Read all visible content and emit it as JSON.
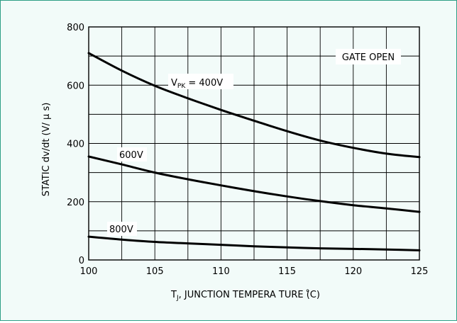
{
  "chart_data": {
    "type": "line",
    "title": "",
    "xlabel": "T_J, JUNCTION TEMPERA TURE (̊C)",
    "xlabel_main": "T",
    "xlabel_sub": "J",
    "xlabel_rest": ", JUNCTION TEMPERA TURE (̊C)",
    "ylabel": "STATIC dv/dt (V/ μ s)",
    "xlim": [
      100,
      125
    ],
    "ylim": [
      0,
      800
    ],
    "xticks": [
      "100",
      "105",
      "110",
      "115",
      "120",
      "125"
    ],
    "yticks": [
      "0",
      "200",
      "400",
      "600",
      "800"
    ],
    "grid": true,
    "annotation": "GATE OPEN",
    "series": [
      {
        "name": "V_PK = 400V",
        "label_main": "V",
        "label_sub": "PK",
        "label_rest": " = 400V",
        "x": [
          100,
          102.5,
          105,
          107.5,
          110,
          112.5,
          115,
          117.5,
          120,
          122.5,
          125
        ],
        "y": [
          710,
          650,
          598,
          555,
          515,
          478,
          442,
          410,
          385,
          365,
          353
        ]
      },
      {
        "name": "600V",
        "label_main": "600V",
        "x": [
          100,
          102.5,
          105,
          107.5,
          110,
          112.5,
          115,
          117.5,
          120,
          122.5,
          125
        ],
        "y": [
          355,
          328,
          300,
          277,
          256,
          236,
          218,
          202,
          188,
          177,
          165
        ]
      },
      {
        "name": "800V",
        "label_main": "800V",
        "x": [
          100,
          102.5,
          105,
          107.5,
          110,
          112.5,
          115,
          117.5,
          120,
          122.5,
          125
        ],
        "y": [
          80,
          70,
          62,
          57,
          52,
          47,
          43,
          40,
          38,
          36,
          33
        ]
      }
    ]
  }
}
